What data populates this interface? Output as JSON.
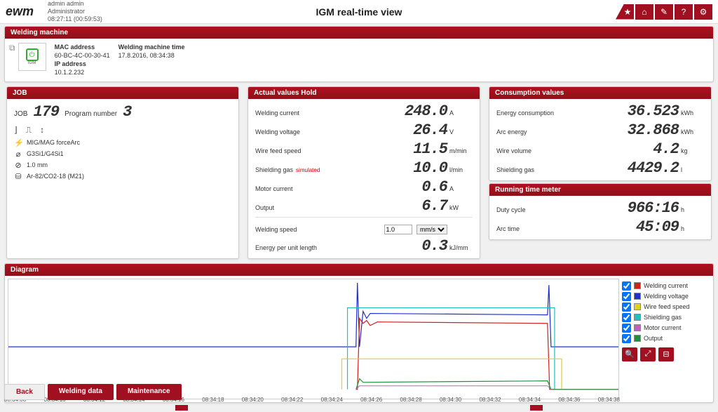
{
  "header": {
    "logo": "ewm",
    "user": "admin admin",
    "role": "Administrator",
    "time": "08:27:11 (00:59:53)",
    "title": "IGM real-time view"
  },
  "wm": {
    "panel": "Welding machine",
    "icon_label": "IGM",
    "mac_lbl": "MAC address",
    "mac": "60-BC-4C-00-30-41",
    "ip_lbl": "IP address",
    "ip": "10.1.2.232",
    "time_lbl": "Welding machine time",
    "time": "17.8.2016, 08:34:38"
  },
  "job": {
    "panel": "JOB",
    "job_lbl": "JOB",
    "job_no": "179",
    "prog_lbl": "Program number",
    "prog_no": "3",
    "process": "MIG/MAG forceArc",
    "wire": "G3Si1/G4Si1",
    "diameter": "1.0 mm",
    "gas": "Ar-82/CO2-18 (M21)"
  },
  "actual": {
    "panel": "Actual values  Hold",
    "rows": [
      {
        "lbl": "Welding current",
        "val": "248.0",
        "unit": "A"
      },
      {
        "lbl": "Welding voltage",
        "val": "26.4",
        "unit": "V"
      },
      {
        "lbl": "Wire feed speed",
        "val": "11.5",
        "unit": "m/min"
      },
      {
        "lbl": "Shielding gas",
        "sim": "simulated",
        "val": "10.0",
        "unit": "l/min"
      },
      {
        "lbl": "Motor current",
        "val": "0.6",
        "unit": "A"
      },
      {
        "lbl": "Output",
        "val": "6.7",
        "unit": "kW"
      }
    ],
    "speed_lbl": "Welding speed",
    "speed_val": "1.0",
    "speed_unit": "mm/s",
    "energy_lbl": "Energy per unit length",
    "energy_val": "0.3",
    "energy_unit": "kJ/mm"
  },
  "consumption": {
    "panel": "Consumption values",
    "rows": [
      {
        "lbl": "Energy consumption",
        "val": "36.523",
        "unit": "kWh"
      },
      {
        "lbl": "Arc energy",
        "val": "32.868",
        "unit": "kWh"
      },
      {
        "lbl": "Wire volume",
        "val": "4.2",
        "unit": "kg"
      },
      {
        "lbl": "Shielding gas",
        "val": "4429.2",
        "unit": "l"
      }
    ]
  },
  "runtime": {
    "panel": "Running time meter",
    "rows": [
      {
        "lbl": "Duty cycle",
        "val": "966:16",
        "unit": "h"
      },
      {
        "lbl": "Arc time",
        "val": "45:09",
        "unit": "h"
      }
    ]
  },
  "diagram": {
    "panel": "Diagram",
    "legend": [
      {
        "name": "Welding current",
        "color": "#d02020"
      },
      {
        "name": "Welding voltage",
        "color": "#2030d0"
      },
      {
        "name": "Wire feed speed",
        "color": "#e0d020"
      },
      {
        "name": "Shielding gas",
        "color": "#20c0c0"
      },
      {
        "name": "Motor current",
        "color": "#c060c0"
      },
      {
        "name": "Output",
        "color": "#209040"
      }
    ],
    "xticks": [
      "08:34:08",
      "08:34:10",
      "08:34:12",
      "08:34:14",
      "08:34:16",
      "08:34:18",
      "08:34:20",
      "08:34:22",
      "08:34:24",
      "08:34:26",
      "08:34:28",
      "08:34:30",
      "08:34:32",
      "08:34:34",
      "08:34:36",
      "08:34:38"
    ],
    "colors": {
      "bg": "#ffffff",
      "grid": "#eee"
    }
  },
  "footer": {
    "back": "Back",
    "wd": "Welding data",
    "mt": "Maintenance"
  }
}
